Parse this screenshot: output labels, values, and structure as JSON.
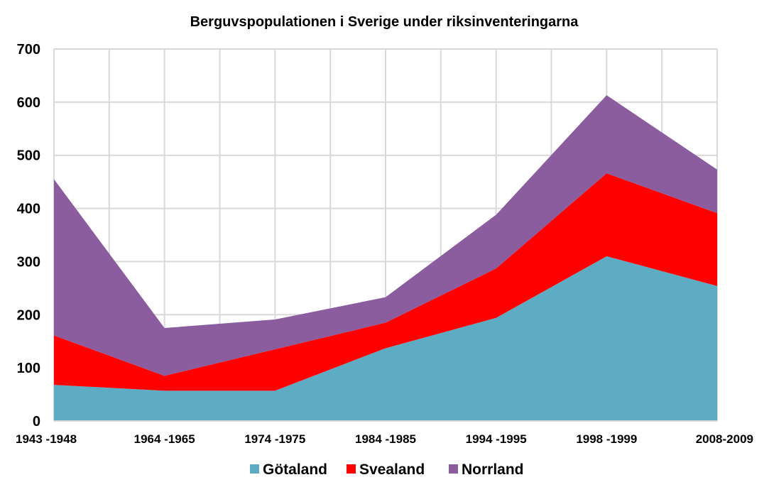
{
  "chart_data": {
    "type": "area",
    "stacked": true,
    "title": "Berguvspopulationen i Sverige under riksinventeringarna",
    "xlabel": "",
    "ylabel": "",
    "categories": [
      "1943 -1948",
      "1964 -1965",
      "1974 -1975",
      "1984 -1985",
      "1994 -1995",
      "1998 -1999",
      "2008-2009"
    ],
    "ylim": [
      0,
      700
    ],
    "yticks": [
      0,
      100,
      200,
      300,
      400,
      500,
      600,
      700
    ],
    "grid": true,
    "legend_position": "bottom",
    "series": [
      {
        "name": "Götaland",
        "color": "#5eacc4",
        "values": [
          68,
          57,
          57,
          137,
          194,
          310,
          254
        ]
      },
      {
        "name": "Svealand",
        "color": "#ff0000",
        "values": [
          93,
          28,
          78,
          48,
          93,
          156,
          137
        ]
      },
      {
        "name": "Norrland",
        "color": "#8b5c9e",
        "values": [
          294,
          90,
          56,
          48,
          101,
          147,
          82
        ]
      }
    ]
  }
}
